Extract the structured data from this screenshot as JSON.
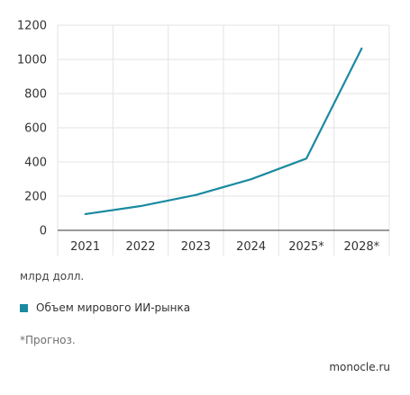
{
  "chart_data": {
    "type": "line",
    "categories": [
      "2021",
      "2022",
      "2023",
      "2024",
      "2025*",
      "2028*"
    ],
    "series": [
      {
        "name": "Объем мирового ИИ-рынка",
        "values": [
          95,
          142,
          207,
          299,
          420,
          1064
        ],
        "color": "#1a8aa0"
      }
    ],
    "ylim": [
      0,
      1200
    ],
    "yticks": [
      0,
      200,
      400,
      600,
      800,
      1000,
      1200
    ],
    "grid": true,
    "ylabel": "млрд долл.",
    "legend_position": "bottom-left"
  },
  "footnote": "*Прогноз.",
  "source": "monocle.ru"
}
